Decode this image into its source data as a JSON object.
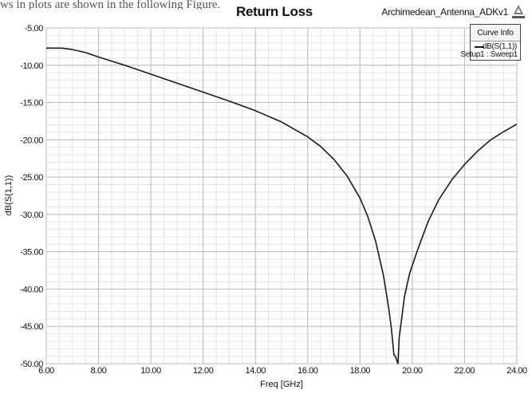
{
  "caption": "ws in plots are shown in the following Figure.",
  "header": {
    "title": "Return Loss",
    "design_name": "Archimedean_Antenna_ADKv1",
    "logo_icon": "ansoft-logo-icon"
  },
  "legend": {
    "heading": "Curve Info",
    "entry_name": "dB(S(1,1))",
    "entry_setup": "Setup1 : Sweep1",
    "color": "#1a1a1a"
  },
  "chart_data": {
    "type": "line",
    "title": "Return Loss",
    "xlabel": "Freq [GHz]",
    "ylabel": "dB(S(1,1))",
    "xlim": [
      6,
      24
    ],
    "ylim": [
      -50,
      -5
    ],
    "xticks": [
      "6.00",
      "8.00",
      "10.00",
      "12.00",
      "14.00",
      "16.00",
      "18.00",
      "20.00",
      "22.00",
      "24.00"
    ],
    "yticks": [
      "-5.00",
      "-10.00",
      "-15.00",
      "-20.00",
      "-25.00",
      "-30.00",
      "-35.00",
      "-40.00",
      "-45.00",
      "-50.00"
    ],
    "grid": true,
    "legend_position": "top-right",
    "series": [
      {
        "name": "dB(S(1,1))",
        "color": "#1a1a1a",
        "x": [
          6.0,
          6.6,
          7.0,
          7.5,
          8.0,
          9.0,
          10.0,
          11.0,
          12.0,
          13.0,
          14.0,
          15.0,
          16.0,
          16.5,
          17.0,
          17.5,
          18.0,
          18.3,
          18.6,
          18.9,
          19.1,
          19.2,
          19.3,
          19.35,
          19.45,
          19.5,
          19.6,
          19.7,
          19.9,
          20.2,
          20.6,
          21.0,
          21.5,
          22.0,
          22.5,
          23.0,
          23.5,
          24.0
        ],
        "y": [
          -7.7,
          -7.7,
          -7.9,
          -8.3,
          -8.9,
          -10.0,
          -11.2,
          -12.4,
          -13.6,
          -14.8,
          -16.1,
          -17.6,
          -19.6,
          -20.9,
          -22.6,
          -24.8,
          -27.8,
          -30.3,
          -33.6,
          -38.2,
          -42.6,
          -45.3,
          -48.8,
          -49.0,
          -50.0,
          -46.5,
          -43.8,
          -41.0,
          -37.9,
          -34.8,
          -31.0,
          -28.1,
          -25.4,
          -23.3,
          -21.5,
          -20.0,
          -18.9,
          -17.9
        ]
      }
    ]
  }
}
